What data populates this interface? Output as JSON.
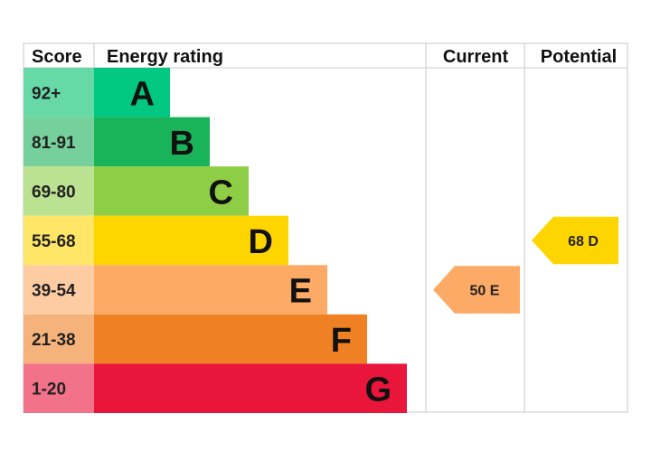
{
  "headers": {
    "score": "Score",
    "energy_rating": "Energy rating",
    "current": "Current",
    "potential": "Potential"
  },
  "chart_data": {
    "type": "table",
    "bands": [
      {
        "letter": "A",
        "range": "92+",
        "min": 92,
        "max": null,
        "color": "#00c781",
        "score_bg": "#66d9a7"
      },
      {
        "letter": "B",
        "range": "81-91",
        "min": 81,
        "max": 91,
        "color": "#19b459",
        "score_bg": "#75d09b"
      },
      {
        "letter": "C",
        "range": "69-80",
        "min": 69,
        "max": 80,
        "color": "#8dce46",
        "score_bg": "#bbe290"
      },
      {
        "letter": "D",
        "range": "55-68",
        "min": 55,
        "max": 68,
        "color": "#ffd500",
        "score_bg": "#ffe666"
      },
      {
        "letter": "E",
        "range": "39-54",
        "min": 39,
        "max": 54,
        "color": "#fcaa65",
        "score_bg": "#fdcca3"
      },
      {
        "letter": "F",
        "range": "21-38",
        "min": 21,
        "max": 38,
        "color": "#ef8023",
        "score_bg": "#f5b37b"
      },
      {
        "letter": "G",
        "range": "1-20",
        "min": 1,
        "max": 20,
        "color": "#e9153b",
        "score_bg": "#f27389"
      }
    ],
    "current": {
      "value": 50,
      "band": "E",
      "label": "50  E"
    },
    "potential": {
      "value": 68,
      "band": "D",
      "label": "68  D"
    }
  }
}
